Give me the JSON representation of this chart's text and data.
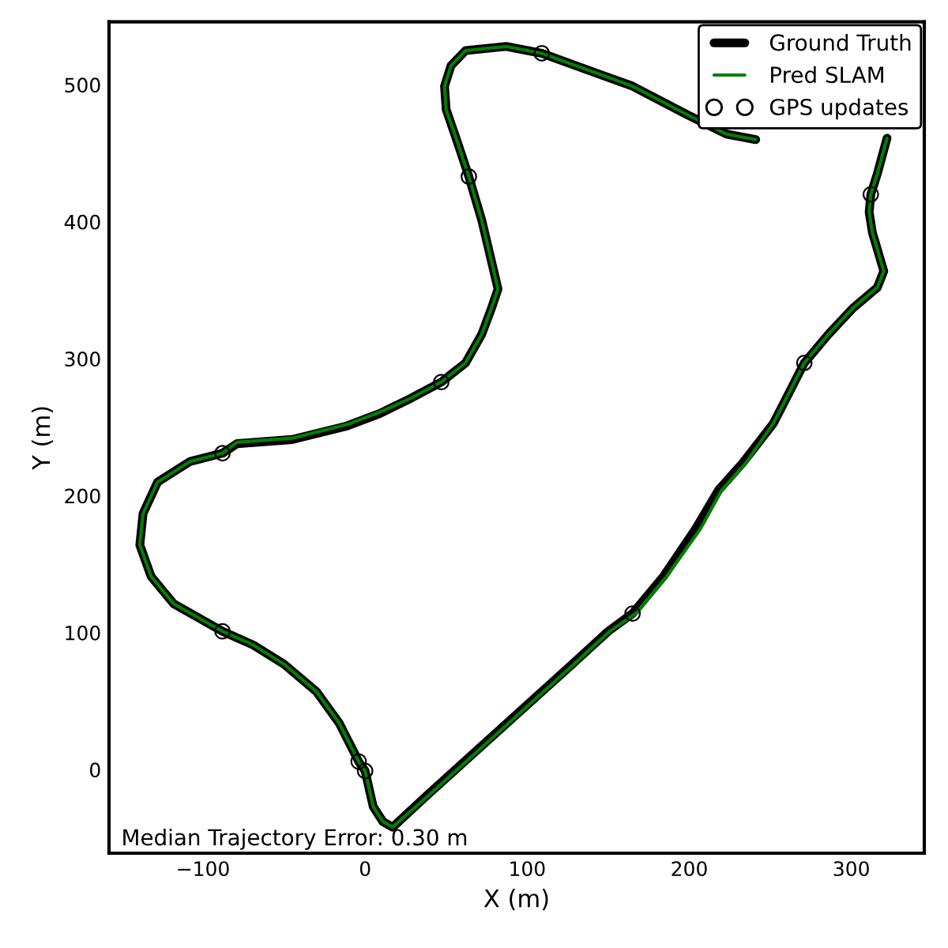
{
  "chart_data": {
    "type": "line",
    "xlabel": "X (m)",
    "ylabel": "Y (m)",
    "xlim": [
      -158,
      345
    ],
    "ylim": [
      -61,
      546
    ],
    "xticks": [
      {
        "value": -100,
        "label": "−100"
      },
      0,
      100,
      200,
      300
    ],
    "yticks": [
      0,
      100,
      200,
      300,
      400,
      500
    ],
    "legend": "top right",
    "annotations": [
      "Median Trajectory Error: 0.30 m"
    ],
    "series": [
      {
        "name": "Ground Truth",
        "color": "#000000",
        "line_style": "solid",
        "x": [
          0,
          -4,
          -16,
          -30,
          -50,
          -69,
          -88,
          -118,
          -132,
          -139,
          -137,
          -128,
          -108,
          -88,
          -79,
          -45,
          -11,
          9,
          28,
          47,
          62,
          72,
          78,
          82,
          79,
          72,
          64,
          57,
          50,
          49,
          53,
          62,
          87,
          109,
          165,
          199,
          223,
          241,
          null,
          322,
          316,
          312,
          311,
          313,
          318,
          320,
          316,
          301,
          286,
          271,
          252,
          233,
          218,
          204,
          184,
          165,
          150,
          126,
          96,
          67,
          38,
          17,
          11,
          5,
          0
        ],
        "values": [
          -1,
          6,
          34,
          57,
          77,
          91,
          101,
          121,
          141,
          164,
          187,
          210,
          225,
          231,
          238,
          241,
          251,
          260,
          271,
          283,
          297,
          318,
          337,
          351,
          366,
          401,
          433,
          458,
          482,
          499,
          514,
          525,
          528,
          523,
          499,
          478,
          464,
          460,
          null,
          461,
          435,
          420,
          407,
          392,
          372,
          364,
          352,
          337,
          318,
          297,
          253,
          224,
          204,
          176,
          141,
          114,
          101,
          75,
          43,
          12,
          -19,
          -42,
          -38,
          -27,
          -1
        ]
      },
      {
        "name": "Pred SLAM",
        "color": "#008000",
        "line_style": "solid",
        "x": [
          0,
          -4,
          -16,
          -30,
          -50,
          -69,
          -88,
          -118,
          -132,
          -139,
          -137,
          -128,
          -108,
          -88,
          -79,
          -45,
          -11,
          9,
          28,
          47,
          62,
          72,
          78,
          82,
          79,
          72,
          64,
          57,
          50,
          49,
          53,
          62,
          87,
          109,
          165,
          199,
          223,
          241,
          null,
          322,
          316,
          312,
          311,
          313,
          318,
          320,
          316,
          301,
          286,
          271,
          252,
          235,
          220,
          207,
          186,
          167,
          151,
          127,
          97,
          68,
          39,
          17,
          11,
          5,
          0
        ],
        "values": [
          -1,
          6,
          34,
          57,
          77,
          91,
          101,
          121,
          141,
          164,
          187,
          210,
          225,
          231,
          239,
          242,
          252,
          261,
          271,
          283,
          297,
          318,
          337,
          351,
          366,
          401,
          433,
          458,
          482,
          499,
          514,
          525,
          528,
          523,
          499,
          478,
          464,
          460,
          null,
          461,
          435,
          420,
          407,
          392,
          372,
          364,
          352,
          337,
          318,
          297,
          253,
          224,
          204,
          176,
          141,
          114,
          101,
          75,
          43,
          12,
          -19,
          -42,
          -38,
          -27,
          -1
        ]
      },
      {
        "name": "GPS updates",
        "type": "scatter",
        "color": "#000000",
        "marker": "circle",
        "x": [
          0,
          -4,
          -88,
          -88,
          47,
          64,
          109,
          312,
          271,
          165
        ],
        "values": [
          -1,
          6,
          101,
          231,
          283,
          433,
          523,
          420,
          297,
          114
        ]
      }
    ]
  }
}
